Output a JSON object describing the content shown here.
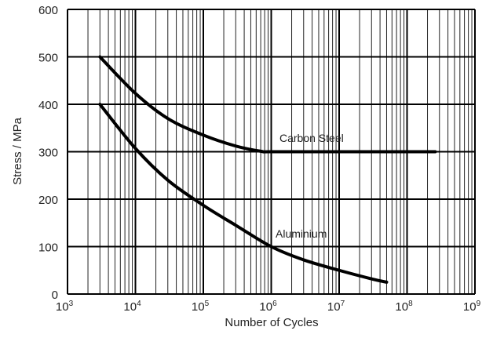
{
  "chart_data": {
    "type": "line",
    "title": "",
    "xlabel": "Number of Cycles",
    "ylabel": "Stress / MPa",
    "x_scale": "log",
    "xlim": [
      1000,
      1000000000
    ],
    "ylim": [
      0,
      600
    ],
    "x_ticks": [
      {
        "value": 1000,
        "base": "10",
        "exp": "3"
      },
      {
        "value": 10000,
        "base": "10",
        "exp": "4"
      },
      {
        "value": 100000,
        "base": "10",
        "exp": "5"
      },
      {
        "value": 1000000,
        "base": "10",
        "exp": "6"
      },
      {
        "value": 10000000,
        "base": "10",
        "exp": "7"
      },
      {
        "value": 100000000,
        "base": "10",
        "exp": "8"
      },
      {
        "value": 1000000000,
        "base": "10",
        "exp": "9"
      }
    ],
    "y_ticks": [
      "0",
      "100",
      "200",
      "300",
      "400",
      "500",
      "600"
    ],
    "grid": true,
    "series": [
      {
        "name": "Carbon Steel",
        "x": [
          3000,
          10000,
          30000,
          100000,
          300000,
          700000,
          1000000,
          10000000,
          100000000,
          260000000
        ],
        "y": [
          500,
          423,
          370,
          335,
          312,
          301,
          300,
          300,
          300,
          300
        ]
      },
      {
        "name": "Aluminium",
        "x": [
          3000,
          10000,
          30000,
          100000,
          300000,
          1000000,
          3000000,
          10000000,
          30000000,
          50000000
        ],
        "y": [
          400,
          307,
          240,
          187,
          145,
          100,
          72,
          50,
          32,
          25
        ]
      }
    ],
    "colors": {
      "line": "#000000",
      "grid": "#222222"
    }
  }
}
